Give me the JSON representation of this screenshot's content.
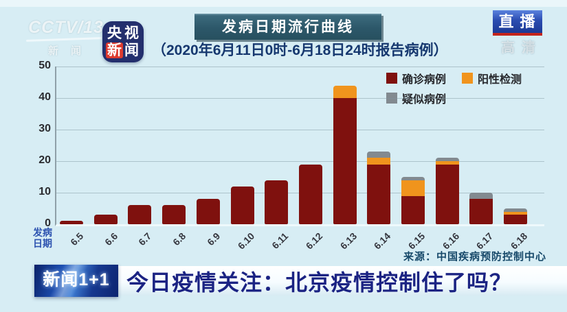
{
  "watermark": {
    "channel": "CCTV/13",
    "channel_sub": "新闻",
    "quality": "高清"
  },
  "badges": {
    "live": "直播",
    "cctv_news": {
      "c1": "央",
      "c2": "视",
      "c3": "新",
      "c4": "闻"
    }
  },
  "header": {
    "title": "发病日期流行曲线",
    "subtitle": "（2020年6月11日0时-6月18日24时报告病例）"
  },
  "chart_data": {
    "type": "bar",
    "stacked": true,
    "title": "发病日期流行曲线",
    "categories": [
      "6.5",
      "6.6",
      "6.7",
      "6.8",
      "6.9",
      "6.10",
      "6.11",
      "6.12",
      "6.13",
      "6.14",
      "6.15",
      "6.16",
      "6.17",
      "6.18"
    ],
    "series": [
      {
        "name": "确诊病例",
        "color": "#7f110e",
        "values": [
          1,
          3,
          6,
          6,
          8,
          12,
          14,
          19,
          40,
          19,
          9,
          19,
          8,
          3
        ]
      },
      {
        "name": "阳性检测",
        "color": "#f0941d",
        "values": [
          0,
          0,
          0,
          0,
          0,
          0,
          0,
          0,
          4,
          2,
          5,
          1,
          0,
          1
        ]
      },
      {
        "name": "疑似病例",
        "color": "#828a90",
        "values": [
          0,
          0,
          0,
          0,
          0,
          0,
          0,
          0,
          0,
          2,
          1,
          1,
          2,
          1
        ]
      }
    ],
    "totals": [
      1,
      3,
      6,
      6,
      8,
      12,
      14,
      19,
      44,
      23,
      15,
      21,
      10,
      5
    ],
    "ylim": [
      0,
      50
    ],
    "yticks": [
      0,
      10,
      20,
      30,
      40,
      50
    ],
    "xlabel": "发病日期",
    "xlabel_lines": [
      "发病",
      "日期"
    ],
    "grid": true,
    "legend_position": "top-right",
    "source": "来源：中国疾病预防控制中心"
  },
  "footer": {
    "program_logo": "新闻1+1",
    "headline": "今日疫情关注：北京疫情控制住了吗？"
  }
}
